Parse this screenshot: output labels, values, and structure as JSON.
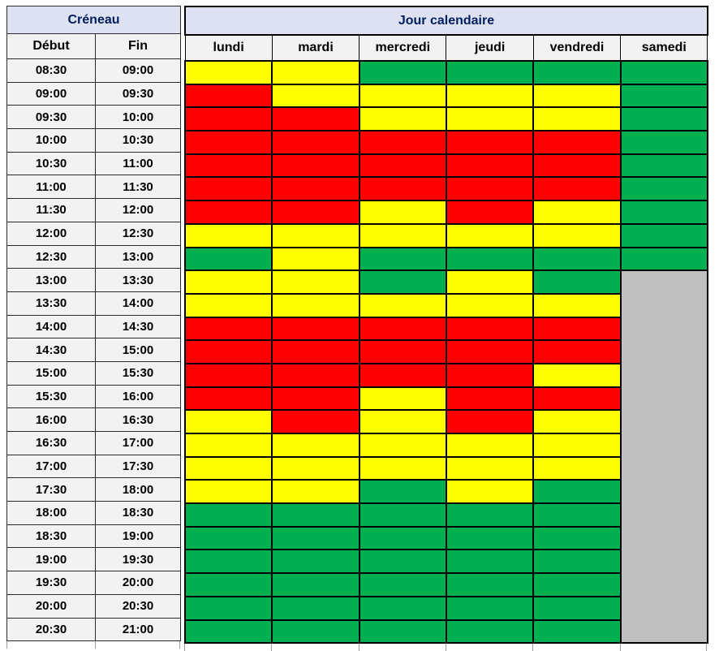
{
  "table": {
    "creneau_header": "Créneau",
    "jour_header": "Jour calendaire",
    "time_columns": [
      "Début",
      "Fin"
    ],
    "day_columns": [
      "lundi",
      "mardi",
      "mercredi",
      "jeudi",
      "vendredi",
      "samedi"
    ],
    "status_colors": {
      "R": "#FF0000",
      "Y": "#FFFF00",
      "G": "#00B050",
      "X": "#C0C0C0"
    },
    "rows": [
      {
        "debut": "08:30",
        "fin": "09:00",
        "statuses": [
          "Y",
          "Y",
          "G",
          "G",
          "G",
          "G"
        ]
      },
      {
        "debut": "09:00",
        "fin": "09:30",
        "statuses": [
          "R",
          "Y",
          "Y",
          "Y",
          "Y",
          "G"
        ]
      },
      {
        "debut": "09:30",
        "fin": "10:00",
        "statuses": [
          "R",
          "R",
          "Y",
          "Y",
          "Y",
          "G"
        ]
      },
      {
        "debut": "10:00",
        "fin": "10:30",
        "statuses": [
          "R",
          "R",
          "R",
          "R",
          "R",
          "G"
        ]
      },
      {
        "debut": "10:30",
        "fin": "11:00",
        "statuses": [
          "R",
          "R",
          "R",
          "R",
          "R",
          "G"
        ]
      },
      {
        "debut": "11:00",
        "fin": "11:30",
        "statuses": [
          "R",
          "R",
          "R",
          "R",
          "R",
          "G"
        ]
      },
      {
        "debut": "11:30",
        "fin": "12:00",
        "statuses": [
          "R",
          "R",
          "Y",
          "R",
          "Y",
          "G"
        ]
      },
      {
        "debut": "12:00",
        "fin": "12:30",
        "statuses": [
          "Y",
          "Y",
          "Y",
          "Y",
          "Y",
          "G"
        ]
      },
      {
        "debut": "12:30",
        "fin": "13:00",
        "statuses": [
          "G",
          "Y",
          "G",
          "G",
          "G",
          "G"
        ]
      },
      {
        "debut": "13:00",
        "fin": "13:30",
        "statuses": [
          "Y",
          "Y",
          "G",
          "Y",
          "G",
          "X"
        ]
      },
      {
        "debut": "13:30",
        "fin": "14:00",
        "statuses": [
          "Y",
          "Y",
          "Y",
          "Y",
          "Y",
          "X"
        ]
      },
      {
        "debut": "14:00",
        "fin": "14:30",
        "statuses": [
          "R",
          "R",
          "R",
          "R",
          "R",
          "X"
        ]
      },
      {
        "debut": "14:30",
        "fin": "15:00",
        "statuses": [
          "R",
          "R",
          "R",
          "R",
          "R",
          "X"
        ]
      },
      {
        "debut": "15:00",
        "fin": "15:30",
        "statuses": [
          "R",
          "R",
          "R",
          "R",
          "Y",
          "X"
        ]
      },
      {
        "debut": "15:30",
        "fin": "16:00",
        "statuses": [
          "R",
          "R",
          "Y",
          "R",
          "R",
          "X"
        ]
      },
      {
        "debut": "16:00",
        "fin": "16:30",
        "statuses": [
          "Y",
          "R",
          "Y",
          "R",
          "Y",
          "X"
        ]
      },
      {
        "debut": "16:30",
        "fin": "17:00",
        "statuses": [
          "Y",
          "Y",
          "Y",
          "Y",
          "Y",
          "X"
        ]
      },
      {
        "debut": "17:00",
        "fin": "17:30",
        "statuses": [
          "Y",
          "Y",
          "Y",
          "Y",
          "Y",
          "X"
        ]
      },
      {
        "debut": "17:30",
        "fin": "18:00",
        "statuses": [
          "Y",
          "Y",
          "G",
          "Y",
          "G",
          "X"
        ]
      },
      {
        "debut": "18:00",
        "fin": "18:30",
        "statuses": [
          "G",
          "G",
          "G",
          "G",
          "G",
          "X"
        ]
      },
      {
        "debut": "18:30",
        "fin": "19:00",
        "statuses": [
          "G",
          "G",
          "G",
          "G",
          "G",
          "X"
        ]
      },
      {
        "debut": "19:00",
        "fin": "19:30",
        "statuses": [
          "G",
          "G",
          "G",
          "G",
          "G",
          "X"
        ]
      },
      {
        "debut": "19:30",
        "fin": "20:00",
        "statuses": [
          "G",
          "G",
          "G",
          "G",
          "G",
          "X"
        ]
      },
      {
        "debut": "20:00",
        "fin": "20:30",
        "statuses": [
          "G",
          "G",
          "G",
          "G",
          "G",
          "X"
        ]
      },
      {
        "debut": "20:30",
        "fin": "21:00",
        "statuses": [
          "G",
          "G",
          "G",
          "G",
          "G",
          "X"
        ]
      }
    ]
  },
  "palette": {
    "header_bg": "#DEE1F2",
    "header_text": "#002060",
    "label_bg": "#F2F2F2"
  }
}
